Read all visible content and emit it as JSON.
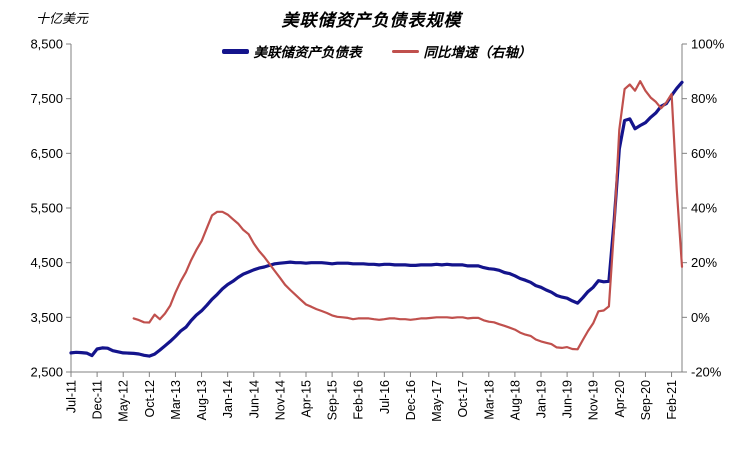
{
  "title": "美联储资产负债表规模",
  "left_axis_unit": "十亿美元",
  "colors": {
    "balance_sheet_line": "#14148C",
    "yoy_line": "#C0504D",
    "axis": "#808080",
    "text": "#000000",
    "background": "#FFFFFF"
  },
  "chart_data": {
    "type": "line",
    "title": "美联储资产负债表规模",
    "subtitle": "",
    "x_start": "Jul-2011",
    "x_end": "Apr-2021",
    "x_frequency": "monthly",
    "months_total": 118,
    "x_tick_month_step": 5,
    "x_tick_labels": [
      "Jul-11",
      "Dec-11",
      "May-12",
      "Oct-12",
      "Mar-13",
      "Aug-13",
      "Jan-14",
      "Jun-14",
      "Nov-14",
      "Apr-15",
      "Sep-15",
      "Feb-16",
      "Jul-16",
      "Dec-16",
      "May-17",
      "Oct-17",
      "Mar-18",
      "Aug-18",
      "Jan-19",
      "Jun-19",
      "Nov-19",
      "Apr-20",
      "Sep-20",
      "Feb-21"
    ],
    "grid": "off",
    "legend_position": "top-center",
    "left_axis": {
      "label": "十亿美元",
      "min": 2500,
      "max": 8500,
      "step": 1000,
      "tick_labels": [
        "8,500",
        "7,500",
        "6,500",
        "5,500",
        "4,500",
        "3,500",
        "2,500"
      ]
    },
    "right_axis": {
      "label": "%",
      "min": -20,
      "max": 100,
      "step": 20,
      "tick_labels": [
        "100%",
        "80%",
        "60%",
        "40%",
        "20%",
        "0%",
        "-20%"
      ]
    },
    "series": [
      {
        "name": "美联储资产负债表",
        "axis": "left",
        "color": "#14148C",
        "unit": "billion USD",
        "start_month_index": 0,
        "values": [
          2850,
          2860,
          2855,
          2845,
          2800,
          2920,
          2940,
          2935,
          2890,
          2870,
          2850,
          2845,
          2840,
          2830,
          2805,
          2790,
          2828,
          2900,
          2980,
          3060,
          3150,
          3250,
          3320,
          3440,
          3540,
          3620,
          3720,
          3830,
          3920,
          4020,
          4100,
          4160,
          4230,
          4290,
          4330,
          4370,
          4400,
          4420,
          4450,
          4480,
          4490,
          4500,
          4510,
          4500,
          4500,
          4490,
          4500,
          4500,
          4500,
          4490,
          4480,
          4490,
          4490,
          4490,
          4480,
          4480,
          4480,
          4470,
          4470,
          4460,
          4470,
          4470,
          4460,
          4460,
          4460,
          4450,
          4450,
          4460,
          4460,
          4460,
          4470,
          4460,
          4470,
          4460,
          4460,
          4460,
          4440,
          4440,
          4440,
          4410,
          4390,
          4380,
          4360,
          4320,
          4300,
          4260,
          4210,
          4180,
          4140,
          4080,
          4050,
          4000,
          3960,
          3900,
          3870,
          3850,
          3800,
          3760,
          3860,
          3970,
          4050,
          4170,
          4150,
          4160,
          5250,
          6580,
          7100,
          7130,
          6950,
          7010,
          7060,
          7160,
          7240,
          7360,
          7410,
          7560,
          7690,
          7800
        ]
      },
      {
        "name": "同比增速（右轴）",
        "axis": "right",
        "color": "#C0504D",
        "unit": "percent",
        "start_month_index": 12,
        "values": [
          -0.4,
          -1.0,
          -1.8,
          -1.9,
          1.0,
          -0.7,
          1.4,
          4.3,
          9.0,
          13.2,
          16.5,
          20.9,
          24.6,
          27.9,
          32.6,
          37.3,
          38.6,
          38.6,
          37.6,
          35.9,
          34.3,
          32.0,
          30.4,
          27.0,
          24.3,
          22.1,
          19.6,
          17.0,
          14.5,
          11.9,
          10.0,
          8.2,
          6.4,
          4.7,
          3.9,
          3.0,
          2.3,
          1.6,
          0.7,
          0.2,
          0.0,
          -0.2,
          -0.7,
          -0.4,
          -0.4,
          -0.4,
          -0.7,
          -0.9,
          -0.7,
          -0.4,
          -0.4,
          -0.7,
          -0.7,
          -0.9,
          -0.7,
          -0.4,
          -0.4,
          -0.2,
          0.0,
          0.0,
          0.0,
          -0.2,
          0.0,
          0.0,
          -0.4,
          -0.2,
          -0.2,
          -1.1,
          -1.6,
          -1.8,
          -2.5,
          -3.1,
          -3.8,
          -4.5,
          -5.6,
          -6.3,
          -6.8,
          -8.1,
          -8.8,
          -9.3,
          -9.8,
          -11.0,
          -11.2,
          -10.9,
          -11.6,
          -11.7,
          -8.3,
          -5.0,
          -2.2,
          2.2,
          2.5,
          4.0,
          32.6,
          68.7,
          83.5,
          85.2,
          82.9,
          86.4,
          82.9,
          80.4,
          78.8,
          76.5,
          78.6,
          81.7,
          46.5,
          18.5
        ]
      }
    ]
  }
}
